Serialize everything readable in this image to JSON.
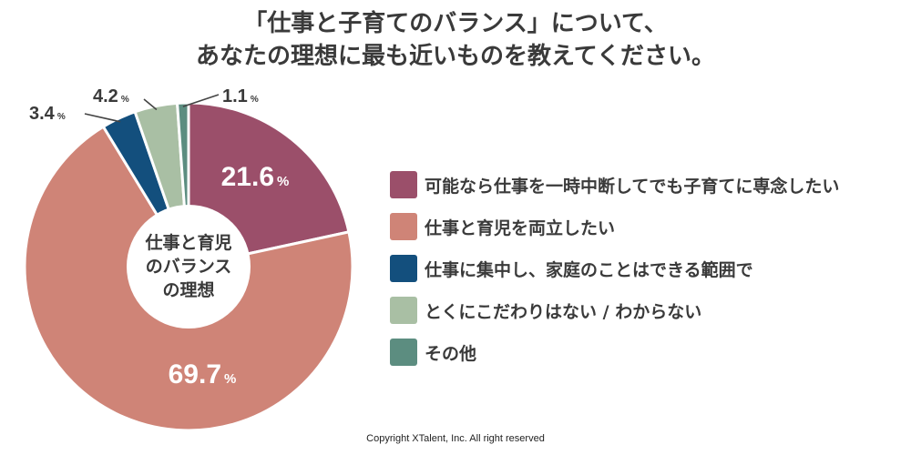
{
  "chart_data": {
    "type": "pie",
    "donut": true,
    "title_lines": [
      "「仕事と子育てのバランス」について、",
      "あなたの理想に最も近いものを教えてください。"
    ],
    "center_label": [
      "仕事と育児",
      "のバランス",
      "の理想"
    ],
    "unit": "%",
    "categories": [
      "可能なら仕事を一時中断してでも子育てに専念したい",
      "仕事と育児を両立したい",
      "仕事に集中し、家庭のことはできる範囲で",
      "とくにこだわりはない / わからない",
      "その他"
    ],
    "values": [
      21.6,
      69.7,
      3.4,
      4.2,
      1.1
    ],
    "value_labels": [
      "21.6",
      "69.7",
      "3.4",
      "4.2",
      "1.1"
    ],
    "colors": [
      "#9b4f6a",
      "#cf8477",
      "#134f7d",
      "#a9bfa4",
      "#5c8d80"
    ],
    "legend_position": "right"
  },
  "footer": {
    "copyright": "Copyright XTalent, Inc. All right reserved"
  }
}
